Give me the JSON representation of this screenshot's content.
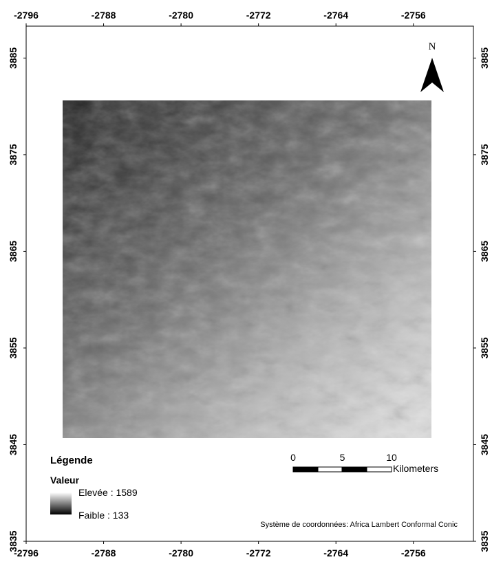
{
  "map": {
    "x_ticks": [
      -2796,
      -2788,
      -2780,
      -2772,
      -2764,
      -2756
    ],
    "y_ticks": [
      3885,
      3875,
      3865,
      3855,
      3845,
      3835
    ],
    "xlim": [
      -2796,
      -2749.8
    ],
    "ylim": [
      3835,
      3888.3
    ],
    "north": "N",
    "legend": {
      "title": "Légende",
      "subtitle": "Valeur",
      "high": "Elevée : 1589",
      "low": "Faible : 133"
    },
    "scale_bar": {
      "ticks": [
        0,
        5,
        10
      ],
      "unit": "Kilometers"
    },
    "crs_note": "Système de coordonnées: Africa Lambert Conformal Conic"
  }
}
